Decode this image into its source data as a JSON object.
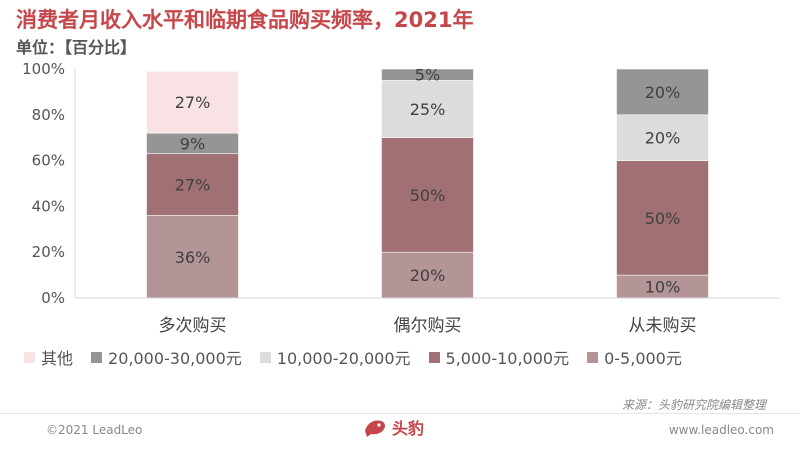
{
  "title": "消费者月收入水平和临期食品购买频率，2021年",
  "unit_label": "单位：【百分比】",
  "source": "来源：头豹研究院编辑整理",
  "copyright": "©2021 LeadLeo",
  "website": "www.leadleo.com",
  "logo_text": "头豹",
  "colors": {
    "title": "#c6474b",
    "series": [
      "#b39497",
      "#a07074",
      "#dcdcdc",
      "#959595",
      "#f9e2e4"
    ]
  },
  "chart_data": {
    "type": "bar",
    "stacked": true,
    "categories": [
      "多次购买",
      "偶尔购买",
      "从未购买"
    ],
    "series": [
      {
        "name": "0-5,000元",
        "values": [
          36,
          20,
          10
        ]
      },
      {
        "name": "5,000-10,000元",
        "values": [
          27,
          50,
          50
        ]
      },
      {
        "name": "10,000-20,000元",
        "values": [
          0,
          25,
          20
        ]
      },
      {
        "name": "20,000-30,000元",
        "values": [
          9,
          5,
          20
        ]
      },
      {
        "name": "其他",
        "values": [
          27,
          0,
          0
        ]
      }
    ],
    "data_labels": [
      [
        "36%",
        "20%",
        "10%"
      ],
      [
        "27%",
        "50%",
        "50%"
      ],
      [
        "",
        "25%",
        "20%"
      ],
      [
        "9%",
        "5%",
        "20%"
      ],
      [
        "27%",
        "",
        ""
      ]
    ],
    "y_ticks": [
      "0%",
      "20%",
      "40%",
      "60%",
      "80%",
      "100%"
    ],
    "ylim": [
      0,
      100
    ],
    "legend_order": [
      4,
      3,
      2,
      1,
      0
    ],
    "legend_position": "bottom",
    "grid": false
  }
}
